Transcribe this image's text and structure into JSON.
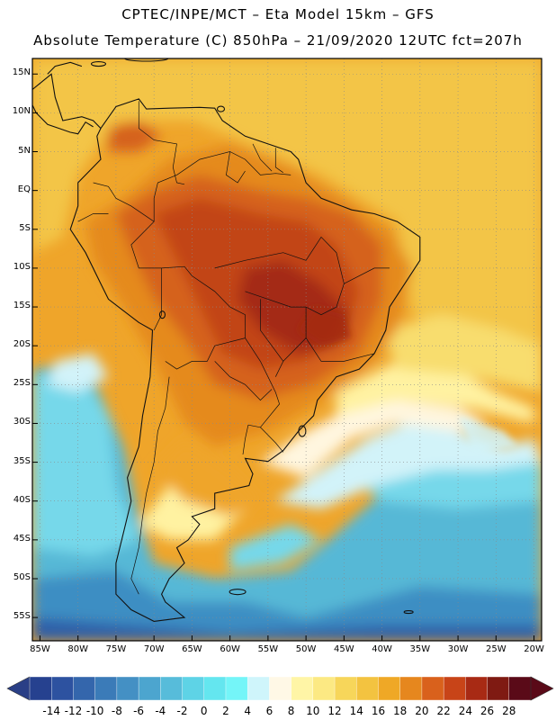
{
  "title_line1": "CPTEC/INPE/MCT –   Eta Model 15km – GFS",
  "title_line2": "Absolute Temperature (C) 850hPa – 21/09/2020 12UTC fct=207h",
  "lat_labels": [
    "15N",
    "10N",
    "5N",
    "EQ",
    "5S",
    "10S",
    "15S",
    "20S",
    "25S",
    "30S",
    "35S",
    "40S",
    "45S",
    "50S",
    "55S"
  ],
  "lon_labels": [
    "85W",
    "80W",
    "75W",
    "70W",
    "65W",
    "60W",
    "55W",
    "50W",
    "45W",
    "40W",
    "35W",
    "30W",
    "25W",
    "20W"
  ],
  "colorbar": {
    "labels": [
      "-14",
      "-12",
      "-10",
      "-8",
      "-6",
      "-4",
      "-2",
      "0",
      "2",
      "4",
      "6",
      "8",
      "10",
      "12",
      "14",
      "16",
      "18",
      "20",
      "22",
      "24",
      "26",
      "28"
    ],
    "below_color": "#2a3f86",
    "above_color": "#5a0a18",
    "colors": [
      "#26418f",
      "#2d52a0",
      "#3466ac",
      "#3b7bb8",
      "#4490c4",
      "#4ca5cf",
      "#57bcda",
      "#5ed3e6",
      "#64e6ef",
      "#74f5f8",
      "#cff5fb",
      "#fff8e6",
      "#fff5a6",
      "#fce983",
      "#f7d65a",
      "#f3c340",
      "#efa826",
      "#e6871e",
      "#d9611c",
      "#c84418",
      "#a82a14",
      "#7f1a12",
      "#5a0a18"
    ]
  },
  "map_extent": {
    "lon_min": -86,
    "lon_max": -19,
    "lat_min": -58,
    "lat_max": 17
  },
  "field_colors": {
    "ocean_cold": "#3e8ec3",
    "ocean_mid": "#56b8d6",
    "ocean_light": "#76d8ea",
    "pale_cyan": "#d2f3f9",
    "cream": "#fff6df",
    "pale_yellow": "#fff2a1",
    "yellow": "#f8dd6e",
    "gold": "#f3c547",
    "orange": "#efa52a",
    "dark_orange": "#e58a1f",
    "burnt": "#d5621b",
    "red": "#c24416",
    "dark_red": "#a42b12",
    "deep_blue": "#2f5fa8"
  }
}
